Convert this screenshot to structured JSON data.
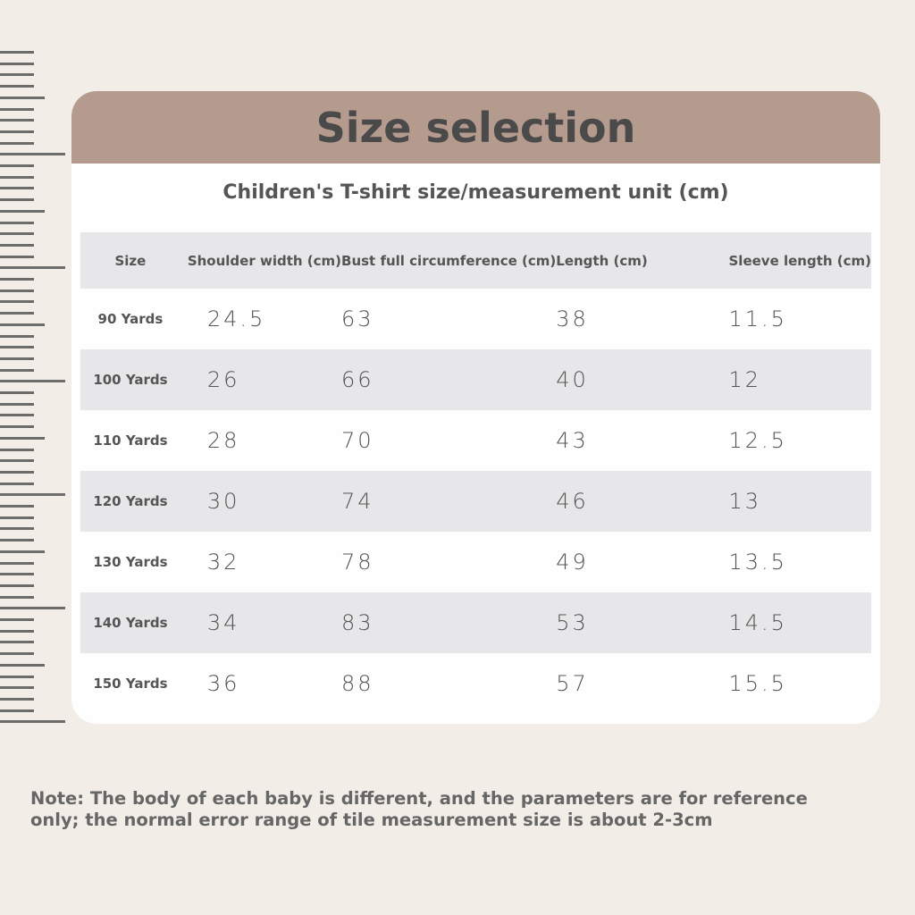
{
  "title": "Size selection",
  "subtitle": "Children's T-shirt size/measurement unit (cm)",
  "table": {
    "headers": [
      "Size",
      "Shoulder width (cm)",
      "Bust full circumference (cm)",
      "Length (cm)",
      "Sleeve length (cm)"
    ],
    "rows": [
      [
        "90 Yards",
        "24.5",
        "63",
        "38",
        "11.5"
      ],
      [
        "100 Yards",
        "26",
        "66",
        "40",
        "12"
      ],
      [
        "110 Yards",
        "28",
        "70",
        "43",
        "12.5"
      ],
      [
        "120 Yards",
        "30",
        "74",
        "46",
        "13"
      ],
      [
        "130 Yards",
        "32",
        "78",
        "49",
        "13.5"
      ],
      [
        "140 Yards",
        "34",
        "83",
        "53",
        "14.5"
      ],
      [
        "150 Yards",
        "36",
        "88",
        "57",
        "15.5"
      ]
    ]
  },
  "note": "Note: The body of each baby is different, and the parameters are for reference only; the normal error range of tile measurement size is about 2-3cm",
  "colors": {
    "banner": "#b59a8e",
    "background": "#f2eee7",
    "stripe": "#e7e6e8"
  }
}
